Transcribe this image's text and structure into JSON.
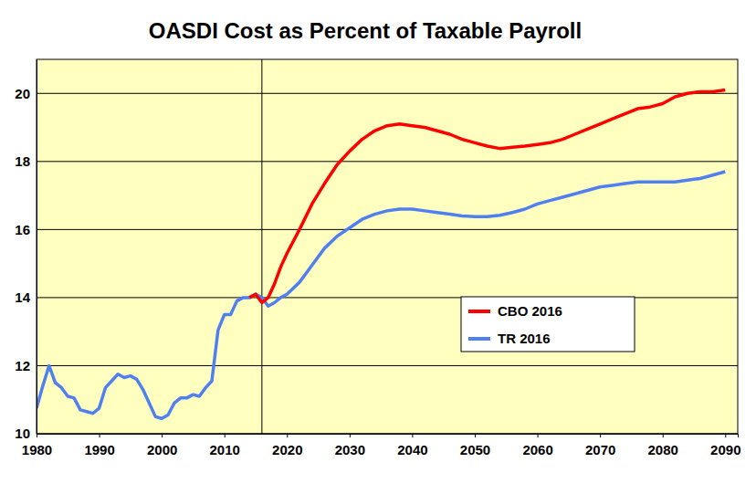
{
  "chart_data": {
    "type": "line",
    "title": "OASDI Cost as Percent of Taxable Payroll",
    "x": [
      1980,
      1981,
      1982,
      1983,
      1984,
      1985,
      1986,
      1987,
      1988,
      1989,
      1990,
      1991,
      1992,
      1993,
      1994,
      1995,
      1996,
      1997,
      1998,
      1999,
      2000,
      2001,
      2002,
      2003,
      2004,
      2005,
      2006,
      2007,
      2008,
      2009,
      2010,
      2011,
      2012,
      2013,
      2014,
      2015,
      2016,
      2017,
      2018,
      2019,
      2020,
      2022,
      2024,
      2026,
      2028,
      2030,
      2032,
      2034,
      2036,
      2038,
      2040,
      2042,
      2044,
      2046,
      2048,
      2050,
      2052,
      2054,
      2056,
      2058,
      2060,
      2062,
      2064,
      2066,
      2068,
      2070,
      2072,
      2074,
      2076,
      2078,
      2080,
      2082,
      2084,
      2086,
      2088,
      2090
    ],
    "series": [
      {
        "name": "CBO 2016",
        "color": "#ff0000",
        "values": [
          null,
          null,
          null,
          null,
          null,
          null,
          null,
          null,
          null,
          null,
          null,
          null,
          null,
          null,
          null,
          null,
          null,
          null,
          null,
          null,
          null,
          null,
          null,
          null,
          null,
          null,
          null,
          null,
          null,
          null,
          null,
          null,
          null,
          null,
          14.0,
          14.1,
          13.85,
          14.0,
          14.4,
          14.9,
          15.3,
          16.0,
          16.75,
          17.35,
          17.9,
          18.3,
          18.65,
          18.9,
          19.05,
          19.1,
          19.05,
          19.0,
          18.9,
          18.8,
          18.65,
          18.55,
          18.45,
          18.38,
          18.42,
          18.45,
          18.5,
          18.55,
          18.65,
          18.8,
          18.95,
          19.1,
          19.25,
          19.4,
          19.55,
          19.6,
          19.7,
          19.9,
          20.0,
          20.05,
          20.05,
          20.1
        ]
      },
      {
        "name": "TR 2016",
        "color": "#5080f0",
        "values": [
          10.75,
          11.4,
          12.0,
          11.5,
          11.35,
          11.1,
          11.05,
          10.7,
          10.65,
          10.6,
          10.75,
          11.35,
          11.55,
          11.75,
          11.65,
          11.7,
          11.6,
          11.3,
          10.9,
          10.5,
          10.45,
          10.55,
          10.9,
          11.05,
          11.05,
          11.15,
          11.1,
          11.35,
          11.55,
          13.05,
          13.5,
          13.5,
          13.9,
          14.0,
          14.0,
          14.1,
          14.0,
          13.75,
          13.85,
          14.0,
          14.1,
          14.45,
          14.95,
          15.45,
          15.8,
          16.05,
          16.3,
          16.45,
          16.55,
          16.6,
          16.6,
          16.55,
          16.5,
          16.45,
          16.4,
          16.38,
          16.38,
          16.42,
          16.5,
          16.6,
          16.75,
          16.85,
          16.95,
          17.05,
          17.15,
          17.25,
          17.3,
          17.35,
          17.4,
          17.4,
          17.4,
          17.4,
          17.45,
          17.5,
          17.6,
          17.7
        ]
      }
    ],
    "xlim": [
      1980,
      2092
    ],
    "xticks": [
      1980,
      1990,
      2000,
      2010,
      2020,
      2030,
      2040,
      2050,
      2060,
      2070,
      2080,
      2090
    ],
    "ylim": [
      10,
      21
    ],
    "yticks": [
      10,
      12,
      14,
      16,
      18,
      20
    ],
    "vline": 2016,
    "grid": true,
    "legend": "right"
  }
}
